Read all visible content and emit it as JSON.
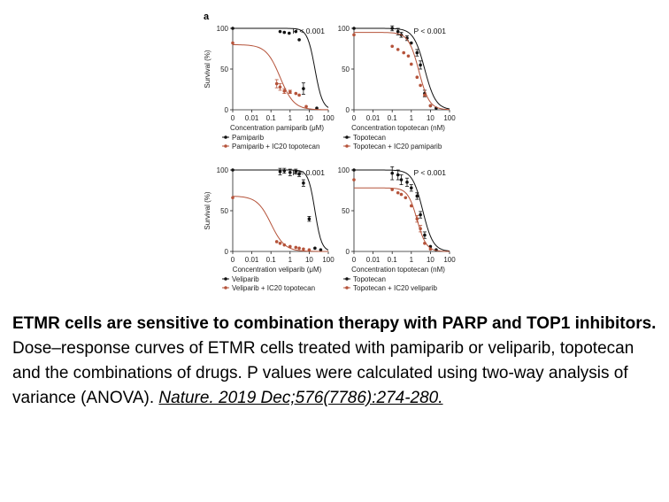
{
  "panel_letter": "a",
  "caption": {
    "title": "ETMR cells are sensitive to combination therapy with PARP and TOP1 inhibitors.",
    "body": "Dose–response curves of ETMR cells treated with pamiparib or veliparib, topotecan and the combinations of drugs. P values were calculated using two-way analysis of variance (ANOVA).",
    "citation": "Nature. 2019 Dec;576(7786):274-280."
  },
  "colors": {
    "black": "#111111",
    "red": "#b5533a"
  },
  "chart_data": [
    {
      "type": "scatter",
      "ylabel": "Survival (%)",
      "xlabel": "Concentration pamiparib (μM)",
      "p_value": "P < 0.001",
      "xticks": [
        "0",
        "0.01",
        "0.1",
        "1",
        "10",
        "100"
      ],
      "yticks": [
        "0",
        "50",
        "100"
      ],
      "ylim": [
        0,
        100
      ],
      "xscale": "log",
      "series": [
        {
          "name": "Pamiparib",
          "color": "black",
          "curve_ic50": 20,
          "curve_top": 100,
          "curve_hill": 2.2,
          "x": [
            0.001,
            0.3,
            0.5,
            0.9,
            2,
            3,
            5,
            25
          ],
          "y": [
            100,
            96,
            95,
            94,
            96,
            86,
            26,
            2
          ],
          "err": [
            0,
            0,
            0,
            0,
            0,
            0,
            7,
            0
          ]
        },
        {
          "name": "Pamiparib + IC20 topotecan",
          "color": "red",
          "curve_ic50": 0.3,
          "curve_top": 80,
          "curve_hill": 1.2,
          "x": [
            0.001,
            0.2,
            0.3,
            0.5,
            1,
            2,
            3,
            7
          ],
          "y": [
            82,
            32,
            28,
            23,
            22,
            20,
            18,
            4
          ],
          "err": [
            0,
            5,
            4,
            3,
            2,
            0,
            0,
            0
          ]
        }
      ]
    },
    {
      "type": "scatter",
      "ylabel": "",
      "xlabel": "Concentration topotecan (nM)",
      "p_value": "P < 0.001",
      "xticks": [
        "0",
        "0.01",
        "0.1",
        "1",
        "10",
        "100"
      ],
      "yticks": [
        "0",
        "50",
        "100"
      ],
      "ylim": [
        0,
        100
      ],
      "xscale": "log",
      "series": [
        {
          "name": "Topotecan",
          "color": "black",
          "curve_ic50": 5,
          "curve_top": 100,
          "curve_hill": 1.5,
          "x": [
            0.001,
            0.1,
            0.2,
            0.3,
            0.6,
            1,
            2,
            3,
            5,
            10,
            20
          ],
          "y": [
            100,
            100,
            96,
            92,
            88,
            82,
            70,
            55,
            20,
            5,
            2
          ],
          "err": [
            0,
            3,
            4,
            3,
            3,
            0,
            4,
            5,
            4,
            0,
            0
          ]
        },
        {
          "name": "Topotecan + IC20 pamiparib",
          "color": "red",
          "curve_ic50": 2.5,
          "curve_top": 95,
          "curve_hill": 1.6,
          "x": [
            0.001,
            0.1,
            0.2,
            0.4,
            0.7,
            1,
            2,
            3,
            5,
            10
          ],
          "y": [
            92,
            78,
            74,
            70,
            66,
            56,
            40,
            30,
            18,
            5
          ],
          "err": [
            0,
            0,
            0,
            0,
            0,
            0,
            0,
            0,
            0,
            0
          ]
        }
      ]
    },
    {
      "type": "scatter",
      "ylabel": "Survival (%)",
      "xlabel": "Concentration veliparib (μM)",
      "p_value": "P < 0.001",
      "xticks": [
        "0",
        "0.01",
        "0.1",
        "1",
        "10",
        "100"
      ],
      "yticks": [
        "0",
        "50",
        "100"
      ],
      "ylim": [
        0,
        100
      ],
      "xscale": "log",
      "series": [
        {
          "name": "Veliparib",
          "color": "black",
          "curve_ic50": 20,
          "curve_top": 100,
          "curve_hill": 2.5,
          "x": [
            0.001,
            0.3,
            0.5,
            1,
            2,
            3,
            5,
            10,
            20,
            40
          ],
          "y": [
            100,
            98,
            99,
            97,
            98,
            95,
            84,
            40,
            4,
            2
          ],
          "err": [
            0,
            4,
            3,
            4,
            3,
            3,
            4,
            3,
            0,
            0
          ]
        },
        {
          "name": "Veliparib + IC20 topotecan",
          "color": "red",
          "curve_ic50": 0.1,
          "curve_top": 68,
          "curve_hill": 1.2,
          "x": [
            0.001,
            0.2,
            0.3,
            0.5,
            1,
            2,
            3,
            5,
            10
          ],
          "y": [
            66,
            12,
            10,
            8,
            6,
            5,
            4,
            3,
            2
          ],
          "err": [
            0,
            0,
            0,
            0,
            0,
            0,
            0,
            0,
            0
          ]
        }
      ]
    },
    {
      "type": "scatter",
      "ylabel": "",
      "xlabel": "Concentration topotecan (nM)",
      "p_value": "P < 0.001",
      "xticks": [
        "0",
        "0.01",
        "0.1",
        "1",
        "10",
        "100"
      ],
      "yticks": [
        "0",
        "50",
        "100"
      ],
      "ylim": [
        0,
        100
      ],
      "xscale": "log",
      "series": [
        {
          "name": "Topotecan",
          "color": "black",
          "curve_ic50": 4,
          "curve_top": 100,
          "curve_hill": 1.6,
          "x": [
            0.001,
            0.1,
            0.2,
            0.3,
            0.6,
            1,
            2,
            3,
            5,
            10,
            20
          ],
          "y": [
            100,
            96,
            94,
            88,
            85,
            78,
            68,
            45,
            20,
            6,
            2
          ],
          "err": [
            0,
            8,
            6,
            6,
            5,
            4,
            4,
            4,
            4,
            0,
            0
          ]
        },
        {
          "name": "Topotecan + IC20 veliparib",
          "color": "red",
          "curve_ic50": 2,
          "curve_top": 78,
          "curve_hill": 1.8,
          "x": [
            0.001,
            0.1,
            0.2,
            0.3,
            0.5,
            1,
            2,
            3,
            5,
            10
          ],
          "y": [
            88,
            76,
            72,
            70,
            66,
            56,
            40,
            28,
            10,
            3
          ],
          "err": [
            0,
            0,
            0,
            0,
            0,
            0,
            4,
            4,
            0,
            0
          ]
        }
      ]
    }
  ]
}
